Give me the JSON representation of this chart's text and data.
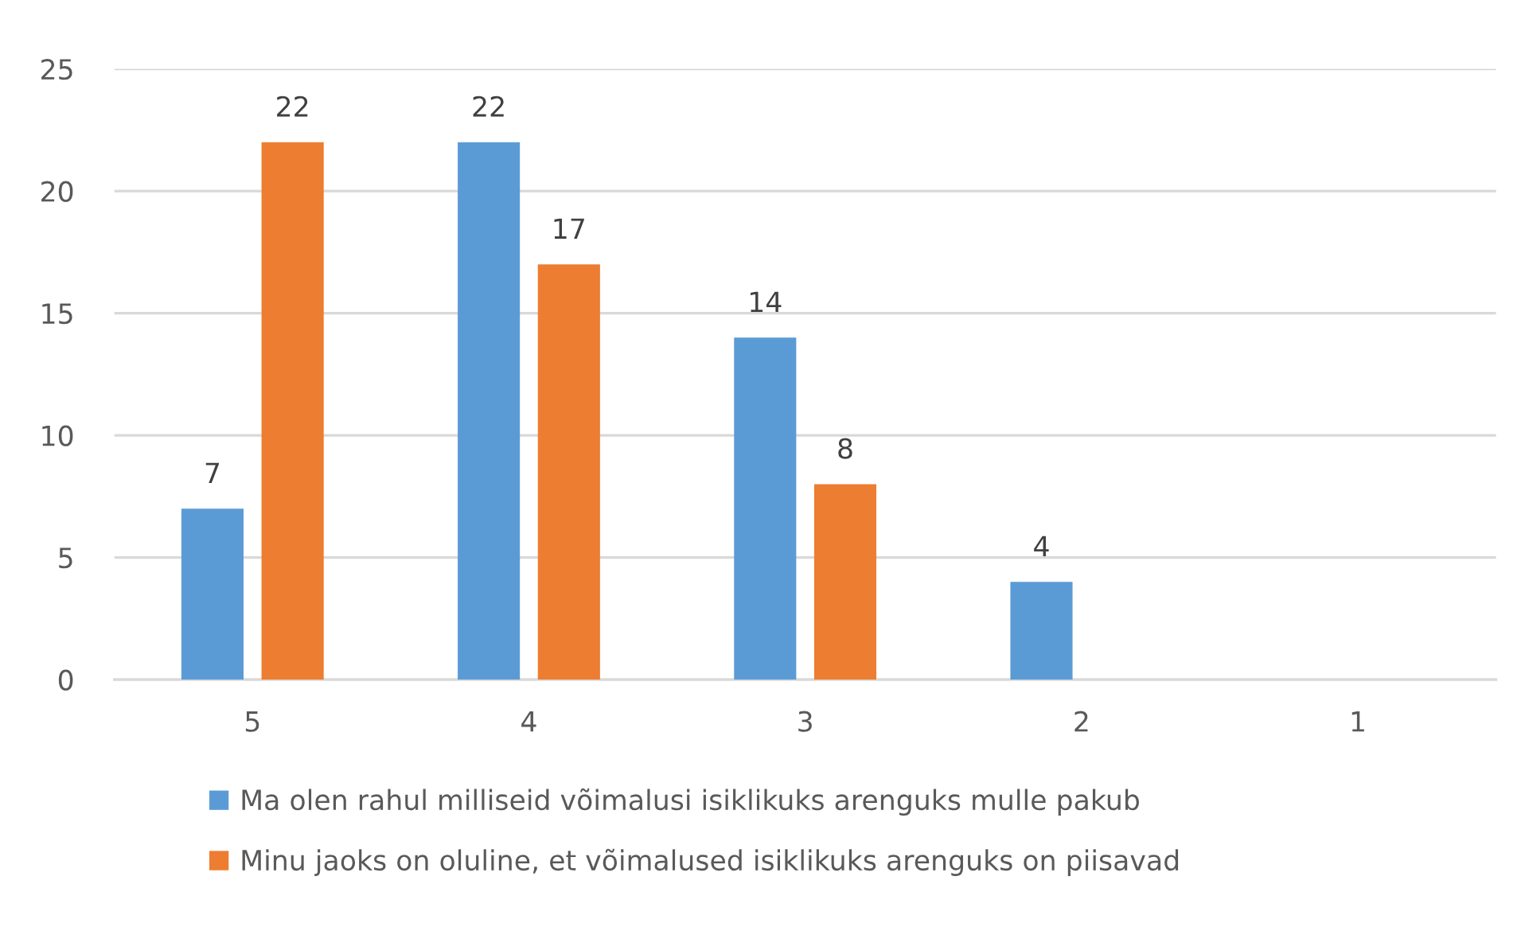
{
  "chart_data": {
    "type": "bar",
    "categories": [
      "5",
      "4",
      "3",
      "2",
      "1"
    ],
    "series": [
      {
        "name": "Ma olen rahul milliseid võimalusi isiklikuks arenguks mulle pakub",
        "color": "#5b9bd5",
        "values": [
          7,
          22,
          14,
          4,
          null
        ]
      },
      {
        "name": "Minu jaoks on oluline, et võimalused isiklikuks arenguks on piisavad",
        "color": "#ed7d31",
        "values": [
          22,
          17,
          8,
          null,
          null
        ]
      }
    ],
    "ylim": [
      0,
      25
    ],
    "yticks": [
      0,
      5,
      10,
      15,
      20,
      25
    ],
    "grid": "y",
    "legend": "bottom",
    "data_labels": true
  }
}
